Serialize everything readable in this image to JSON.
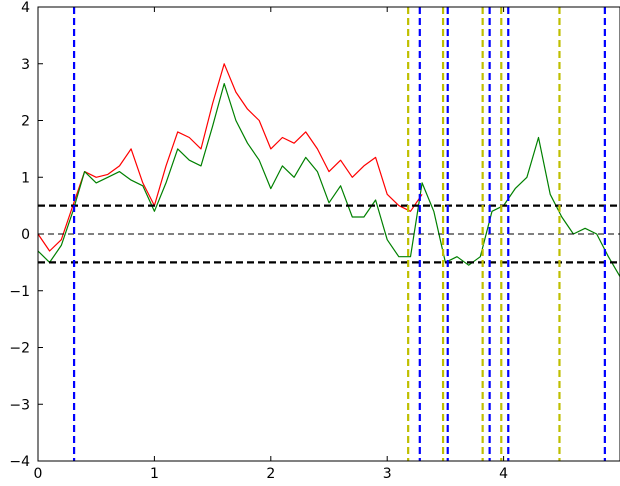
{
  "chart_data": {
    "type": "line",
    "title": "",
    "xlabel": "",
    "ylabel": "",
    "xlim": [
      0,
      5
    ],
    "ylim": [
      -4,
      4
    ],
    "x_ticks": [
      0,
      1,
      2,
      3,
      4
    ],
    "x_tick_labels": [
      "0",
      "1",
      "2",
      "3",
      "4"
    ],
    "y_ticks": [
      -4,
      -3,
      -2,
      -1,
      0,
      1,
      2,
      3,
      4
    ],
    "y_tick_labels": [
      "−4",
      "−3",
      "−2",
      "−1",
      "0",
      "1",
      "2",
      "3",
      "4"
    ],
    "grid": false,
    "colors": {
      "red_series": "#ff0000",
      "green_series": "#008000",
      "yellow_vlines": "#bfbf00",
      "blue_vlines": "#0000ff",
      "threshold_lines": "#000000"
    },
    "series": [
      {
        "color": "red",
        "x": [
          0.0,
          0.1,
          0.2,
          0.3,
          0.4,
          0.5,
          0.6,
          0.7,
          0.8,
          0.9,
          1.0,
          1.1,
          1.2,
          1.3,
          1.4,
          1.5,
          1.6,
          1.7,
          1.8,
          1.9,
          2.0,
          2.1,
          2.2,
          2.3,
          2.4,
          2.5,
          2.6,
          2.7,
          2.8,
          2.9,
          3.0,
          3.1,
          3.2,
          3.3
        ],
        "y": [
          0.0,
          -0.3,
          -0.1,
          0.5,
          1.1,
          1.0,
          1.05,
          1.2,
          1.5,
          0.9,
          0.5,
          1.2,
          1.8,
          1.7,
          1.5,
          2.3,
          3.0,
          2.5,
          2.2,
          2.0,
          1.5,
          1.7,
          1.6,
          1.8,
          1.5,
          1.1,
          1.3,
          1.0,
          1.2,
          1.35,
          0.7,
          0.5,
          0.4,
          0.7
        ]
      },
      {
        "color": "green",
        "x": [
          0.0,
          0.1,
          0.2,
          0.3,
          0.4,
          0.5,
          0.6,
          0.7,
          0.8,
          0.9,
          1.0,
          1.1,
          1.2,
          1.3,
          1.4,
          1.5,
          1.6,
          1.7,
          1.8,
          1.9,
          2.0,
          2.1,
          2.2,
          2.3,
          2.4,
          2.5,
          2.6,
          2.7,
          2.8,
          2.9,
          3.0,
          3.1,
          3.2,
          3.3,
          3.4,
          3.5,
          3.6,
          3.7,
          3.8,
          3.9,
          4.0,
          4.1,
          4.2,
          4.3,
          4.4,
          4.5,
          4.6,
          4.7,
          4.8,
          4.9,
          5.0
        ],
        "y": [
          -0.3,
          -0.5,
          -0.2,
          0.4,
          1.1,
          0.9,
          1.0,
          1.1,
          0.95,
          0.85,
          0.4,
          0.9,
          1.5,
          1.3,
          1.2,
          1.9,
          2.65,
          2.0,
          1.6,
          1.3,
          0.8,
          1.2,
          1.0,
          1.35,
          1.1,
          0.55,
          0.85,
          0.3,
          0.3,
          0.6,
          -0.1,
          -0.4,
          -0.4,
          0.9,
          0.4,
          -0.5,
          -0.4,
          -0.55,
          -0.4,
          0.4,
          0.5,
          0.8,
          1.0,
          1.7,
          0.7,
          0.3,
          0.0,
          0.1,
          0.0,
          -0.4,
          -0.75
        ]
      }
    ],
    "hlines": [
      {
        "y": 0.5,
        "style": "dashed-thick"
      },
      {
        "y": -0.5,
        "style": "dashed-thick"
      },
      {
        "y": 0.0,
        "style": "dashed-thin"
      }
    ],
    "vlines": [
      {
        "x": 0.31,
        "color": "blue"
      },
      {
        "x": 3.18,
        "color": "yellow"
      },
      {
        "x": 3.28,
        "color": "blue"
      },
      {
        "x": 3.48,
        "color": "yellow"
      },
      {
        "x": 3.52,
        "color": "blue"
      },
      {
        "x": 3.82,
        "color": "yellow"
      },
      {
        "x": 3.88,
        "color": "blue"
      },
      {
        "x": 3.98,
        "color": "yellow"
      },
      {
        "x": 4.04,
        "color": "blue"
      },
      {
        "x": 4.48,
        "color": "yellow"
      },
      {
        "x": 4.87,
        "color": "blue"
      }
    ]
  }
}
